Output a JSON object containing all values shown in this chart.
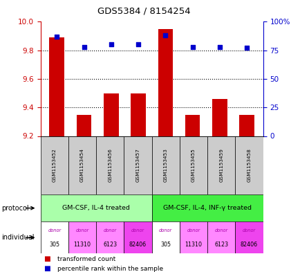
{
  "title": "GDS5384 / 8154254",
  "samples": [
    "GSM1153452",
    "GSM1153454",
    "GSM1153456",
    "GSM1153457",
    "GSM1153453",
    "GSM1153455",
    "GSM1153459",
    "GSM1153458"
  ],
  "transformed_count": [
    9.89,
    9.35,
    9.5,
    9.5,
    9.95,
    9.35,
    9.46,
    9.35
  ],
  "percentile_rank": [
    87,
    78,
    80,
    80,
    88,
    78,
    78,
    77
  ],
  "ylim_left": [
    9.2,
    10.0
  ],
  "yticks_left": [
    9.2,
    9.4,
    9.6,
    9.8,
    10.0
  ],
  "yticks_right": [
    0,
    25,
    50,
    75,
    100
  ],
  "ytick_labels_right": [
    "0",
    "25",
    "50",
    "75",
    "100%"
  ],
  "bar_color": "#cc0000",
  "dot_color": "#0000cc",
  "protocol_groups": [
    {
      "label": "GM-CSF, IL-4 treated",
      "start": 0,
      "end": 3,
      "color": "#aaffaa"
    },
    {
      "label": "GM-CSF, IL-4, INF-γ treated",
      "start": 4,
      "end": 7,
      "color": "#44ee44"
    }
  ],
  "individuals": [
    {
      "label": "donor\n305",
      "color": "#ffffff"
    },
    {
      "label": "donor\n11310",
      "color": "#ff88ff"
    },
    {
      "label": "donor\n6123",
      "color": "#ff88ff"
    },
    {
      "label": "donor\n82406",
      "color": "#ee44ee"
    },
    {
      "label": "donor\n305",
      "color": "#ffffff"
    },
    {
      "label": "donor\n11310",
      "color": "#ff88ff"
    },
    {
      "label": "donor\n6123",
      "color": "#ff88ff"
    },
    {
      "label": "donor\n82406",
      "color": "#ee44ee"
    }
  ],
  "indiv_colors": [
    "#ffffff",
    "#ff88ff",
    "#ff88ff",
    "#ee44ee",
    "#ffffff",
    "#ff88ff",
    "#ff88ff",
    "#ee44ee"
  ],
  "legend_items": [
    {
      "color": "#cc0000",
      "label": "transformed count"
    },
    {
      "color": "#0000cc",
      "label": "percentile rank within the sample"
    }
  ],
  "left_tick_color": "#cc0000",
  "right_tick_color": "#0000cc",
  "sample_box_color": "#cccccc",
  "dotted_grid_pcts": [
    25,
    50,
    75
  ]
}
